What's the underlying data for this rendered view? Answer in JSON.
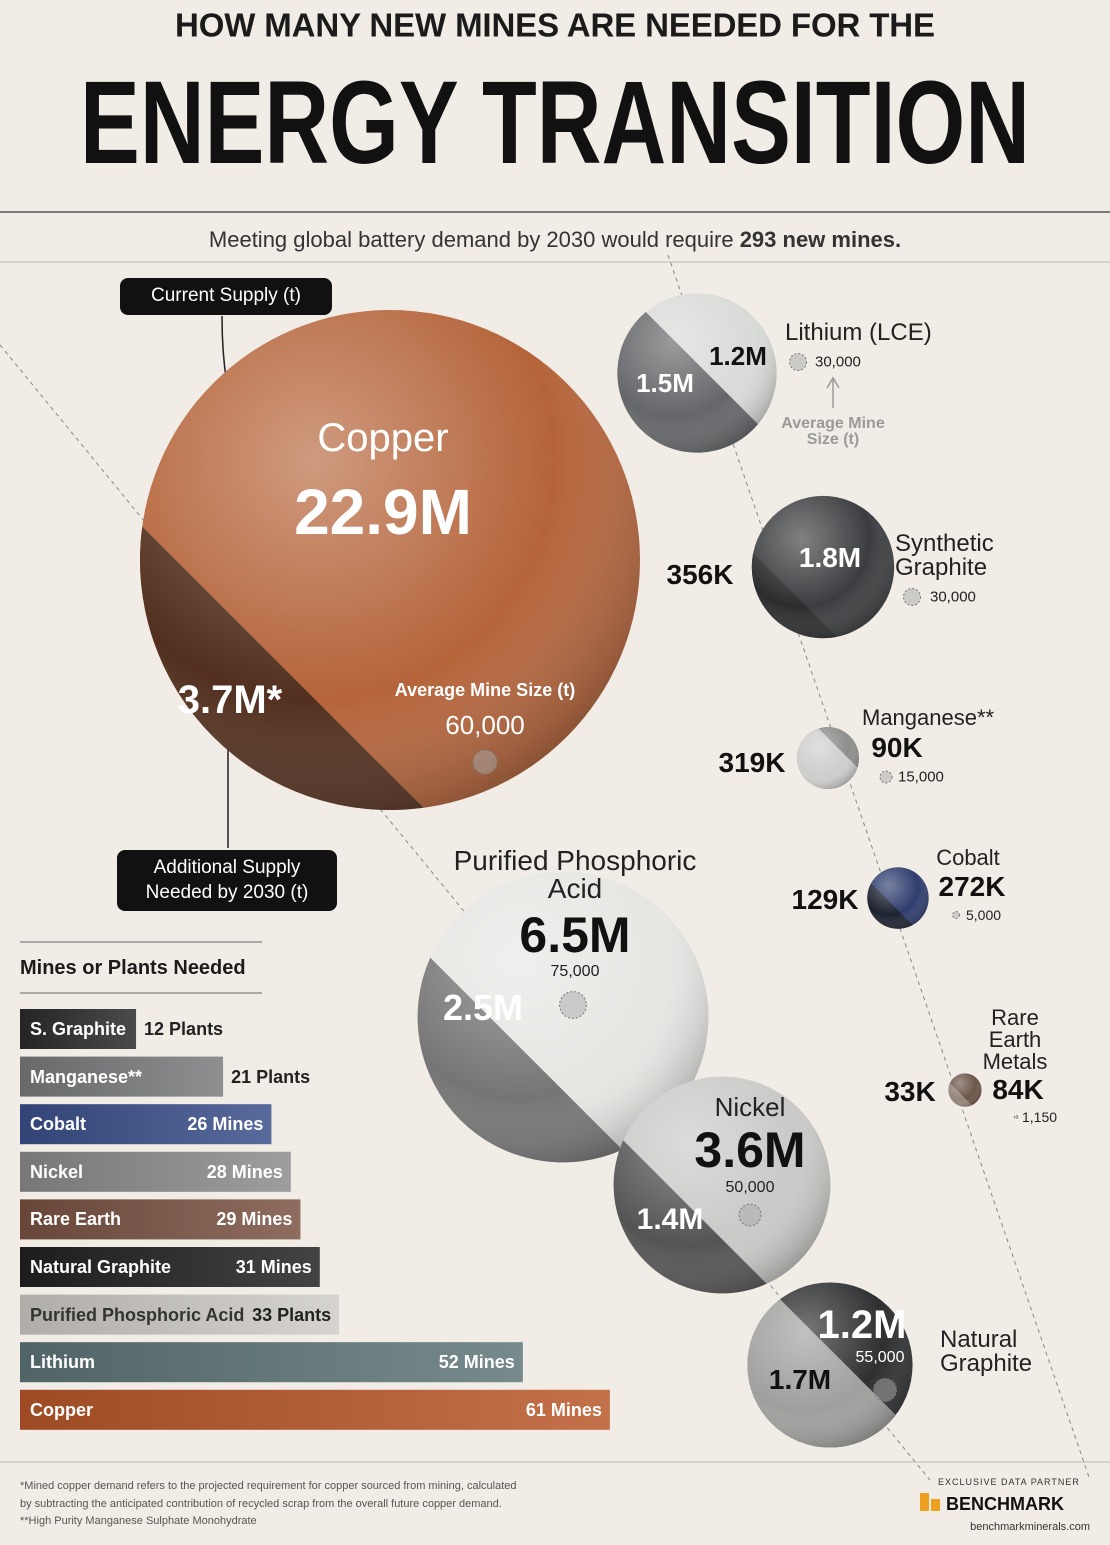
{
  "header": {
    "kicker": "HOW MANY NEW MINES ARE NEEDED FOR THE",
    "title": "ENERGY TRANSITION",
    "subtitle": "Meeting global battery demand by 2030 would require",
    "subtitle_bold": "293 new mines."
  },
  "chart_data": [
    {
      "type": "bubble",
      "categories": [
        "Copper",
        "Lithium (LCE)",
        "Synthetic Graphite",
        "Manganese**",
        "Cobalt",
        "Purified Phosphoric Acid",
        "Rare Earth Metals",
        "Nickel",
        "Natural Graphite"
      ],
      "series": [
        {
          "name": "Current Supply (t)",
          "colors": [
            "#b5643a",
            "#d9dbd8",
            "#3c3d40",
            "#8e8e8c",
            "#2f3d6e",
            "#e6e6e3",
            "#6d5548",
            "#c9c9c7",
            "#2e2f31"
          ],
          "values": [
            22900000,
            1200000,
            1800000,
            90000,
            272000,
            6500000,
            84000,
            3600000,
            1200000
          ],
          "value_labels": [
            "22.9M",
            "1.2M",
            "1.8M",
            "90K",
            "272K",
            "6.5M",
            "84K",
            "3.6M",
            "1.2M"
          ]
        },
        {
          "name": "Additional Supply Needed by 2030 (t)",
          "colors": [
            "#4a2a1c",
            "#5a5c5f",
            "#2a2a2c",
            "#d4d4d2",
            "#1c1f2a",
            "#6b6b6b",
            "#9a8a80",
            "#4a4a4a",
            "#a9a9a7"
          ],
          "values": [
            3700000,
            1500000,
            356000,
            319000,
            129000,
            2500000,
            33000,
            1400000,
            1700000
          ],
          "value_labels": [
            "3.7M*",
            "1.5M",
            "356K",
            "319K",
            "129K",
            "2.5M",
            "33K",
            "1.4M",
            "1.7M"
          ]
        },
        {
          "name": "Average Mine Size (t)",
          "values": [
            60000,
            30000,
            30000,
            15000,
            5000,
            75000,
            1150,
            50000,
            55000
          ],
          "value_labels": [
            "60,000",
            "30,000",
            "30,000",
            "15,000",
            "5,000",
            "75,000",
            "1,150",
            "50,000",
            "55,000"
          ]
        }
      ]
    },
    {
      "type": "hbar",
      "title": "Mines or Plants Needed",
      "categories": [
        "S. Graphite",
        "Manganese**",
        "Cobalt",
        "Nickel",
        "Rare Earth",
        "Natural Graphite",
        "Purified Phosphoric Acid",
        "Lithium",
        "Copper"
      ],
      "values": [
        12,
        21,
        26,
        28,
        29,
        31,
        33,
        52,
        61
      ],
      "value_labels": [
        "12 Plants",
        "21 Plants",
        "26 Mines",
        "28 Mines",
        "29 Mines",
        "31 Mines",
        "33 Plants",
        "52 Mines",
        "61 Mines"
      ],
      "colors": [
        "#2b2b2c",
        "#7a7b7c",
        "#3b4f8a",
        "#8c8c8c",
        "#7a5242",
        "#222224",
        "#cfccc6",
        "#5f7579",
        "#b9582a"
      ]
    }
  ],
  "footer": {
    "notes": [
      "*Mined copper demand refers to the projected requirement for copper sourced from mining, calculated",
      "by subtracting the anticipated contribution of recycled scrap from the overall future copper demand.",
      "**High Purity Manganese Sulphate Monohydrate"
    ],
    "partner_label": "EXCLUSIVE DATA PARTNER",
    "partner": "BENCHMARK",
    "url": "benchmarkminerals.com"
  }
}
